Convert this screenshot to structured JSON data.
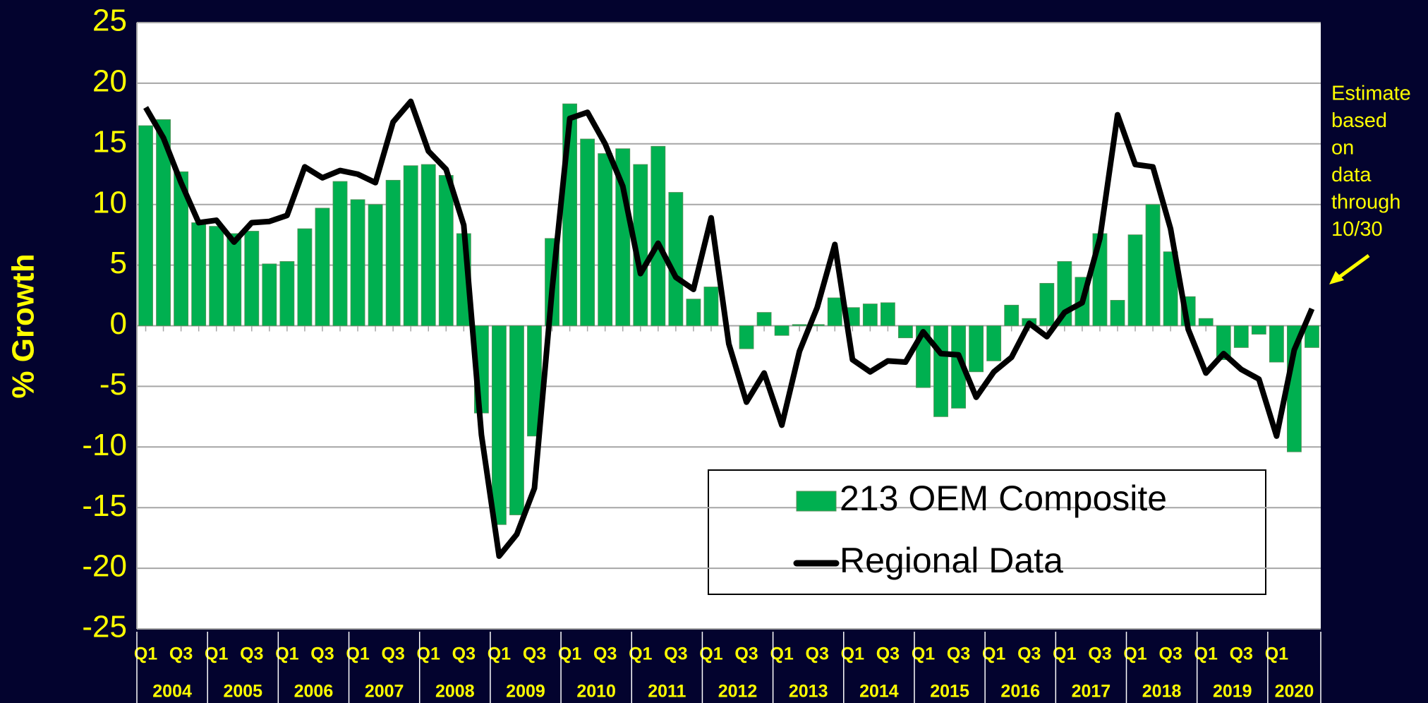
{
  "chart_data": {
    "type": "bar_line",
    "y_axis_label": "% Growth",
    "categories": [
      "Q1",
      null,
      "Q3",
      null,
      "Q1",
      null,
      "Q3",
      null,
      "Q1",
      null,
      "Q3",
      null,
      "Q1",
      null,
      "Q3",
      null,
      "Q1",
      null,
      "Q3",
      null,
      "Q1",
      null,
      "Q3",
      null,
      "Q1",
      null,
      "Q3",
      null,
      "Q1",
      null,
      "Q3",
      null,
      "Q1",
      null,
      "Q3",
      null,
      "Q1",
      null,
      "Q3",
      null,
      "Q1",
      null,
      "Q3",
      null,
      "Q1",
      null,
      "Q3",
      null,
      "Q1",
      null,
      "Q3",
      null,
      "Q1",
      null,
      "Q3",
      null,
      "Q1",
      null,
      "Q3",
      null,
      "Q1",
      null,
      "Q3",
      null,
      "Q1",
      null,
      null
    ],
    "years": [
      "2004",
      "2005",
      "2006",
      "2007",
      "2008",
      "2009",
      "2010",
      "2011",
      "2012",
      "2013",
      "2014",
      "2015",
      "2016",
      "2017",
      "2018",
      "2019",
      "2020"
    ],
    "series": [
      {
        "name": "213 OEM Composite",
        "type": "bar",
        "color": "#00b050",
        "values": [
          16.5,
          17,
          12.7,
          8.5,
          8.2,
          7.6,
          7.8,
          5.1,
          5.3,
          8,
          9.7,
          11.9,
          10.4,
          10,
          12,
          13.2,
          13.3,
          12.4,
          7.6,
          -7.2,
          -16.4,
          -15.6,
          -9.1,
          7.2,
          18.3,
          15.4,
          14.2,
          14.6,
          13.3,
          14.8,
          11,
          2.2,
          3.2,
          0,
          -1.9,
          1.1,
          -0.8,
          0.1,
          0.1,
          2.3,
          1.5,
          1.8,
          1.9,
          -1,
          -5.1,
          -7.5,
          -6.8,
          -3.8,
          -2.9,
          1.7,
          0.6,
          3.5,
          5.3,
          4,
          7.6,
          2.1,
          7.5,
          10,
          6.1,
          2.4,
          0.6,
          -2.8,
          -1.8,
          -0.7,
          -3,
          -10.4,
          -1.8
        ]
      },
      {
        "name": "Regional Data",
        "type": "line",
        "color": "#000000",
        "values": [
          18,
          15.5,
          11.8,
          8.5,
          8.7,
          6.9,
          8.5,
          8.6,
          9.1,
          13.1,
          12.2,
          12.8,
          12.5,
          11.8,
          16.8,
          18.5,
          14.4,
          12.9,
          8.3,
          -9,
          -19,
          -17.2,
          -13.4,
          3,
          17.1,
          17.6,
          15,
          11.5,
          4.3,
          6.8,
          4,
          3,
          8.9,
          -1.5,
          -6.3,
          -3.9,
          -8.2,
          -2.1,
          1.5,
          6.7,
          -2.8,
          -3.8,
          -2.9,
          -3,
          -0.5,
          -2.3,
          -2.4,
          -5.9,
          -3.8,
          -2.6,
          0.2,
          -0.9,
          1.1,
          1.9,
          7.2,
          17.4,
          13.3,
          13.1,
          8,
          -0.3,
          -3.9,
          -2.3,
          -3.6,
          -4.4,
          -9.1,
          -2,
          1.4
        ]
      }
    ],
    "ylim": [
      -25,
      25
    ],
    "yticks": [
      -25,
      -20,
      -15,
      -10,
      -5,
      0,
      5,
      10,
      15,
      20,
      25
    ],
    "grid": true,
    "annotation": [
      "Estimate",
      "based",
      "on",
      "data",
      "through",
      "10/30"
    ]
  }
}
